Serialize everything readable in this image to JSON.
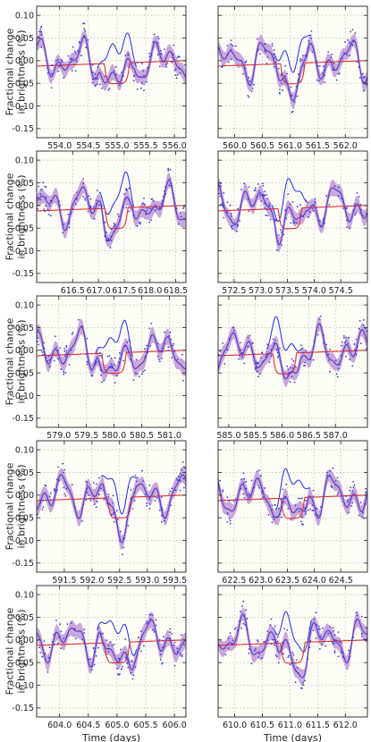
{
  "figure": {
    "ylabel_line1": "Fractional change",
    "ylabel_line2": "in brightness (%)",
    "xlabel": "Time (days)"
  },
  "colors": {
    "panel_background": "#fdfdf6",
    "data_points": "#3a3ae0",
    "gp_mean": "#5a3fc8",
    "gp_band": "#b88ad0",
    "transit_model": "#e0302a",
    "signal_line": "#1c2ee8",
    "grid": "#b8b8b8"
  },
  "chart_data": [
    {
      "type": "line",
      "title": "",
      "xlabel": "",
      "ylabel": "Fractional change in brightness (%)",
      "xlim": [
        553.6,
        556.2
      ],
      "ylim": [
        -0.17,
        0.12
      ],
      "xticks": [
        "554.0",
        "554.5",
        "555.0",
        "555.5",
        "556.0"
      ],
      "yticks": [
        "0.10",
        "0.05",
        "0.00",
        "-0.05",
        "-0.10",
        "-0.15"
      ],
      "transit_center": 555.0,
      "transit_depth": -0.045,
      "grid": true,
      "seed": 11
    },
    {
      "type": "line",
      "title": "",
      "xlabel": "",
      "ylabel": "",
      "xlim": [
        559.7,
        562.4
      ],
      "ylim": [
        -0.17,
        0.12
      ],
      "xticks": [
        "560.0",
        "560.5",
        "561.0",
        "561.5",
        "562.0"
      ],
      "yticks": [],
      "transit_center": 561.05,
      "transit_depth": -0.045,
      "grid": true,
      "seed": 23
    },
    {
      "type": "line",
      "title": "",
      "xlabel": "",
      "ylabel": "Fractional change in brightness (%)",
      "xlim": [
        615.8,
        618.7
      ],
      "ylim": [
        -0.17,
        0.12
      ],
      "xticks": [
        "616.5",
        "617.0",
        "617.5",
        "618.0",
        "618.5"
      ],
      "yticks": [
        "0.10",
        "0.05",
        "0.00",
        "-0.05",
        "-0.10",
        "-0.15"
      ],
      "transit_center": 617.35,
      "transit_depth": -0.045,
      "grid": true,
      "seed": 37
    },
    {
      "type": "line",
      "title": "",
      "xlabel": "",
      "ylabel": "",
      "xlim": [
        572.2,
        575.0
      ],
      "ylim": [
        -0.17,
        0.12
      ],
      "xticks": [
        "572.5",
        "573.0",
        "573.5",
        "574.0",
        "574.5"
      ],
      "yticks": [],
      "transit_center": 573.55,
      "transit_depth": -0.045,
      "grid": true,
      "seed": 41
    },
    {
      "type": "line",
      "title": "",
      "xlabel": "",
      "ylabel": "Fractional change in brightness (%)",
      "xlim": [
        578.6,
        581.3
      ],
      "ylim": [
        -0.17,
        0.12
      ],
      "xticks": [
        "579.0",
        "579.5",
        "580.0",
        "580.5",
        "581.0"
      ],
      "yticks": [
        "0.10",
        "0.05",
        "0.00",
        "-0.05",
        "-0.10",
        "-0.15"
      ],
      "transit_center": 580.0,
      "transit_depth": -0.045,
      "grid": true,
      "seed": 53
    },
    {
      "type": "line",
      "title": "",
      "xlabel": "",
      "ylabel": "",
      "xlim": [
        584.8,
        587.6
      ],
      "ylim": [
        -0.17,
        0.12
      ],
      "xticks": [
        "585.0",
        "585.5",
        "586.0",
        "586.5",
        "587.0"
      ],
      "yticks": [],
      "transit_center": 586.05,
      "transit_depth": -0.045,
      "grid": true,
      "seed": 61
    },
    {
      "type": "line",
      "title": "",
      "xlabel": "",
      "ylabel": "Fractional change in brightness (%)",
      "xlim": [
        591.0,
        593.7
      ],
      "ylim": [
        -0.17,
        0.12
      ],
      "xticks": [
        "591.5",
        "592.0",
        "592.5",
        "593.0",
        "593.5"
      ],
      "yticks": [
        "0.10",
        "0.05",
        "0.00",
        "-0.05",
        "-0.10",
        "-0.15"
      ],
      "transit_center": 592.5,
      "transit_depth": -0.045,
      "grid": true,
      "seed": 73
    },
    {
      "type": "line",
      "title": "",
      "xlabel": "",
      "ylabel": "",
      "xlim": [
        622.2,
        625.0
      ],
      "ylim": [
        -0.17,
        0.12
      ],
      "xticks": [
        "622.5",
        "623.0",
        "623.5",
        "624.0",
        "624.5"
      ],
      "yticks": [],
      "transit_center": 623.6,
      "transit_depth": -0.045,
      "grid": true,
      "seed": 83
    },
    {
      "type": "line",
      "title": "",
      "xlabel": "Time (days)",
      "ylabel": "Fractional change in brightness (%)",
      "xlim": [
        603.6,
        606.2
      ],
      "ylim": [
        -0.17,
        0.12
      ],
      "xticks": [
        "604.0",
        "604.5",
        "605.0",
        "605.5",
        "606.0"
      ],
      "yticks": [
        "0.10",
        "0.05",
        "0.00",
        "-0.05",
        "-0.10",
        "-0.15"
      ],
      "transit_center": 605.0,
      "transit_depth": -0.045,
      "grid": true,
      "seed": 97
    },
    {
      "type": "line",
      "title": "",
      "xlabel": "Time (days)",
      "ylabel": "",
      "xlim": [
        609.7,
        612.4
      ],
      "ylim": [
        -0.17,
        0.12
      ],
      "xticks": [
        "610.0",
        "610.5",
        "611.0",
        "611.5",
        "612.0"
      ],
      "yticks": [],
      "transit_center": 611.05,
      "transit_depth": -0.045,
      "grid": true,
      "seed": 101
    }
  ]
}
